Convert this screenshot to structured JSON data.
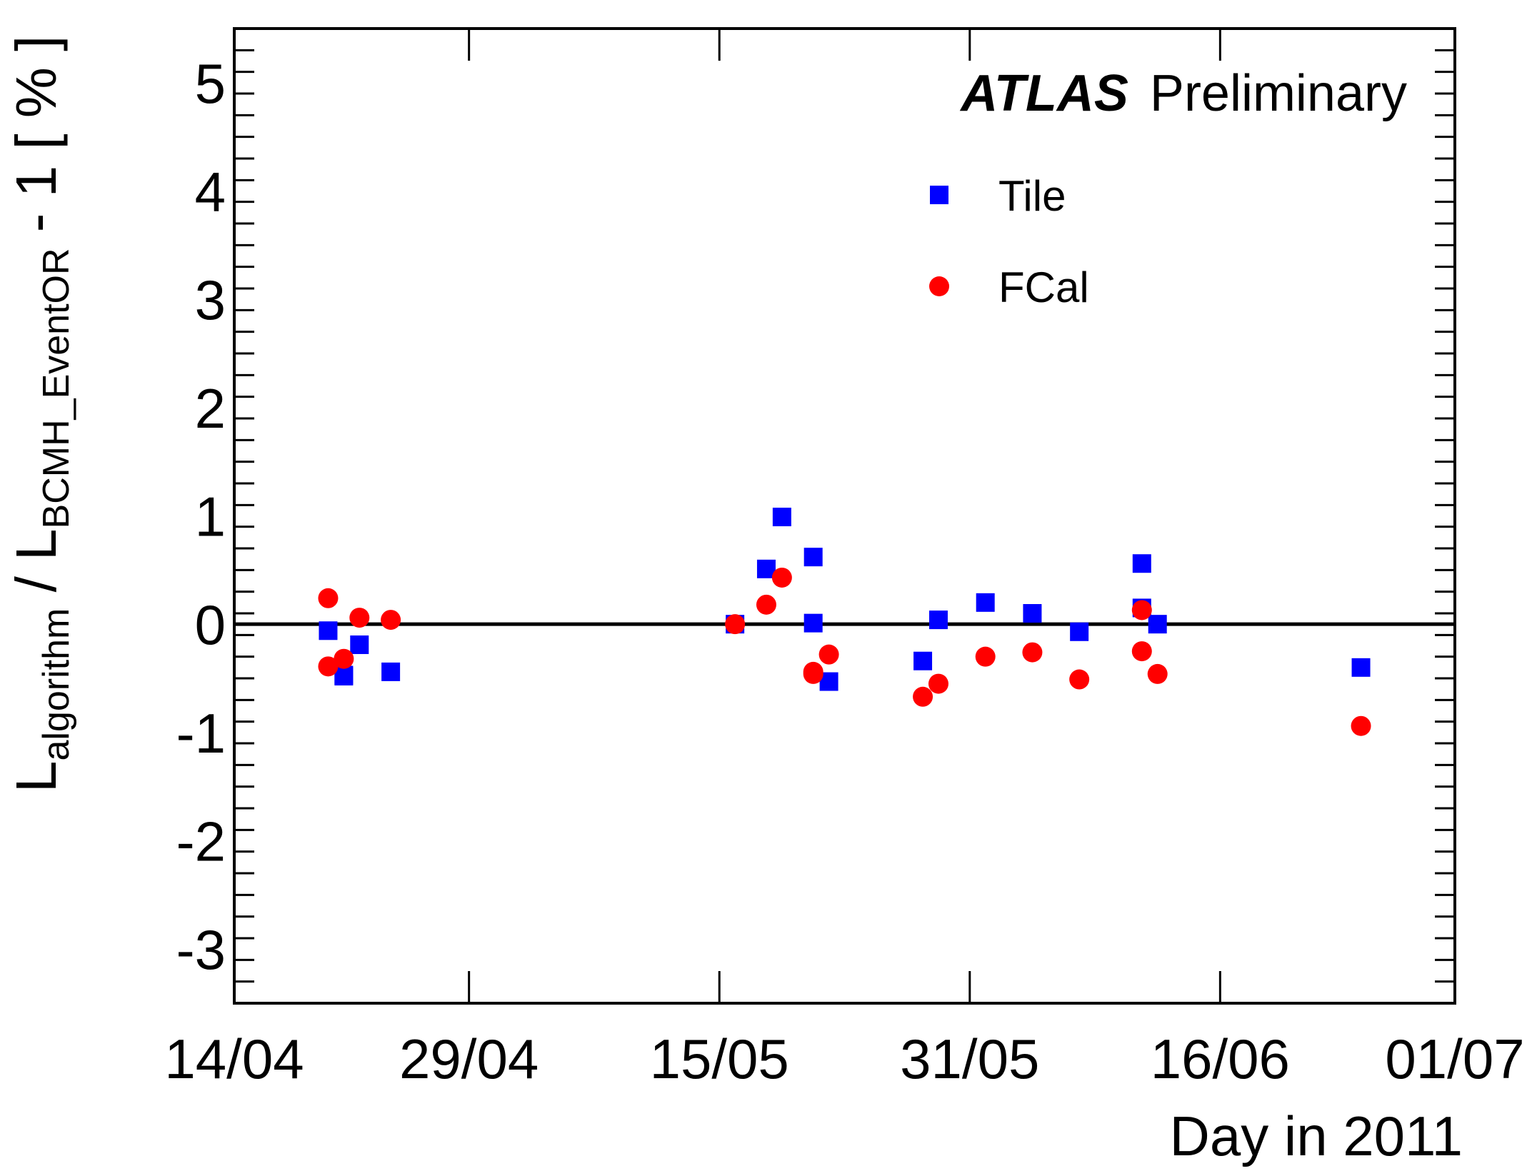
{
  "chart_data": {
    "type": "scatter",
    "title": {
      "bold": "ATLAS",
      "rest": "Preliminary"
    },
    "xlabel": "Day in 2011",
    "ylabel": {
      "l1": "L",
      "s1": "algorithm",
      "mid": " / L",
      "s2": "BCMH_EventOR",
      "end": " - 1 [ % ]"
    },
    "x_range": [
      "2011-04-14",
      "2011-07-01"
    ],
    "ylim": [
      -3.5,
      5.5
    ],
    "x_ticks": [
      {
        "date": "2011-04-14",
        "label": "14/04"
      },
      {
        "date": "2011-04-29",
        "label": "29/04"
      },
      {
        "date": "2011-05-15",
        "label": "15/05"
      },
      {
        "date": "2011-05-31",
        "label": "31/05"
      },
      {
        "date": "2011-06-16",
        "label": "16/06"
      },
      {
        "date": "2011-07-01",
        "label": "01/07"
      }
    ],
    "y_ticks": [
      -3,
      -2,
      -1,
      0,
      1,
      2,
      3,
      4,
      5
    ],
    "reference_line": 0,
    "legend_position": "top-right",
    "grid": false,
    "series": [
      {
        "name": "Tile",
        "marker": "square",
        "color": "#0000ff",
        "points": [
          [
            "2011-04-20",
            -0.06
          ],
          [
            "2011-04-21",
            -0.48
          ],
          [
            "2011-04-21",
            -0.47
          ],
          [
            "2011-04-22",
            -0.19
          ],
          [
            "2011-04-24",
            -0.44
          ],
          [
            "2011-05-16",
            0.0
          ],
          [
            "2011-05-18",
            0.51
          ],
          [
            "2011-05-19",
            0.99
          ],
          [
            "2011-05-21",
            0.62
          ],
          [
            "2011-05-21",
            0.01
          ],
          [
            "2011-05-22",
            -0.53
          ],
          [
            "2011-05-28",
            -0.34
          ],
          [
            "2011-05-29",
            0.04
          ],
          [
            "2011-06-01",
            0.2
          ],
          [
            "2011-06-04",
            0.1
          ],
          [
            "2011-06-07",
            -0.07
          ],
          [
            "2011-06-11",
            0.15
          ],
          [
            "2011-06-11",
            0.56
          ],
          [
            "2011-06-12",
            0.0
          ],
          [
            "2011-06-25",
            -0.4
          ]
        ]
      },
      {
        "name": "FCal",
        "marker": "circle",
        "color": "#ff0000",
        "points": [
          [
            "2011-04-20",
            0.24
          ],
          [
            "2011-04-20",
            -0.39
          ],
          [
            "2011-04-21",
            -0.32
          ],
          [
            "2011-04-22",
            0.06
          ],
          [
            "2011-04-24",
            0.04
          ],
          [
            "2011-05-16",
            0.0
          ],
          [
            "2011-05-18",
            0.18
          ],
          [
            "2011-05-19",
            0.43
          ],
          [
            "2011-05-21",
            -0.44
          ],
          [
            "2011-05-21",
            -0.46
          ],
          [
            "2011-05-22",
            -0.28
          ],
          [
            "2011-05-28",
            -0.67
          ],
          [
            "2011-05-29",
            -0.55
          ],
          [
            "2011-06-01",
            -0.3
          ],
          [
            "2011-06-04",
            -0.26
          ],
          [
            "2011-06-07",
            -0.51
          ],
          [
            "2011-06-11",
            -0.25
          ],
          [
            "2011-06-11",
            0.13
          ],
          [
            "2011-06-12",
            -0.46
          ],
          [
            "2011-06-25",
            -0.94
          ]
        ]
      }
    ]
  }
}
